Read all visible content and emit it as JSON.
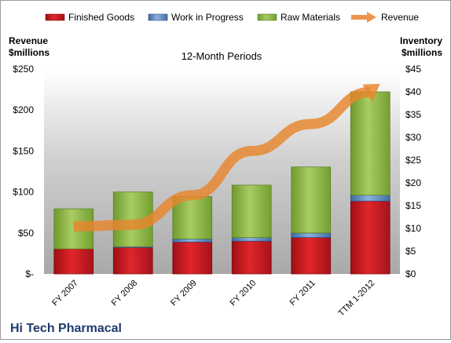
{
  "chart_data": {
    "type": "bar",
    "title": "12-Month Periods",
    "company_label": "Hi Tech Pharmacal",
    "left_axis_title": [
      "Revenue",
      "$millions"
    ],
    "right_axis_title": [
      "Inventory",
      "$millions"
    ],
    "categories": [
      "FY 2007",
      "FY 2008",
      "FY 2009",
      "FY 2010",
      "FY 2011",
      "TTM 1-2012"
    ],
    "left_axis": {
      "min": 0,
      "max": 250,
      "ticks": [
        0,
        50,
        100,
        150,
        200,
        250
      ],
      "tick_labels": [
        "$-",
        "$50",
        "$100",
        "$150",
        "$200",
        "$250"
      ]
    },
    "right_axis": {
      "min": 0,
      "max": 45,
      "ticks": [
        0,
        5,
        10,
        15,
        20,
        25,
        30,
        35,
        40,
        45
      ],
      "tick_labels": [
        "$0",
        "$5",
        "$10",
        "$15",
        "$20",
        "$25",
        "$30",
        "$35",
        "$40",
        "$45"
      ]
    },
    "stacked_series": [
      {
        "name": "Finished Goods",
        "axis": "right",
        "color": "#c0161c",
        "values": [
          5.5,
          5.8,
          7.0,
          7.2,
          8.0,
          16.0
        ]
      },
      {
        "name": "Work in Progress",
        "axis": "right",
        "color": "#4f81bd",
        "values": [
          0.0,
          0.2,
          0.7,
          0.8,
          1.0,
          1.3
        ]
      },
      {
        "name": "Raw Materials",
        "axis": "right",
        "color": "#8ab43c",
        "values": [
          8.8,
          12.0,
          9.3,
          11.5,
          14.5,
          22.7
        ]
      }
    ],
    "line_series": {
      "name": "Revenue",
      "axis": "left",
      "color": "#e8852c",
      "values": [
        58,
        60,
        96,
        150,
        183,
        222
      ]
    },
    "legend_position": "top",
    "grid": false
  }
}
